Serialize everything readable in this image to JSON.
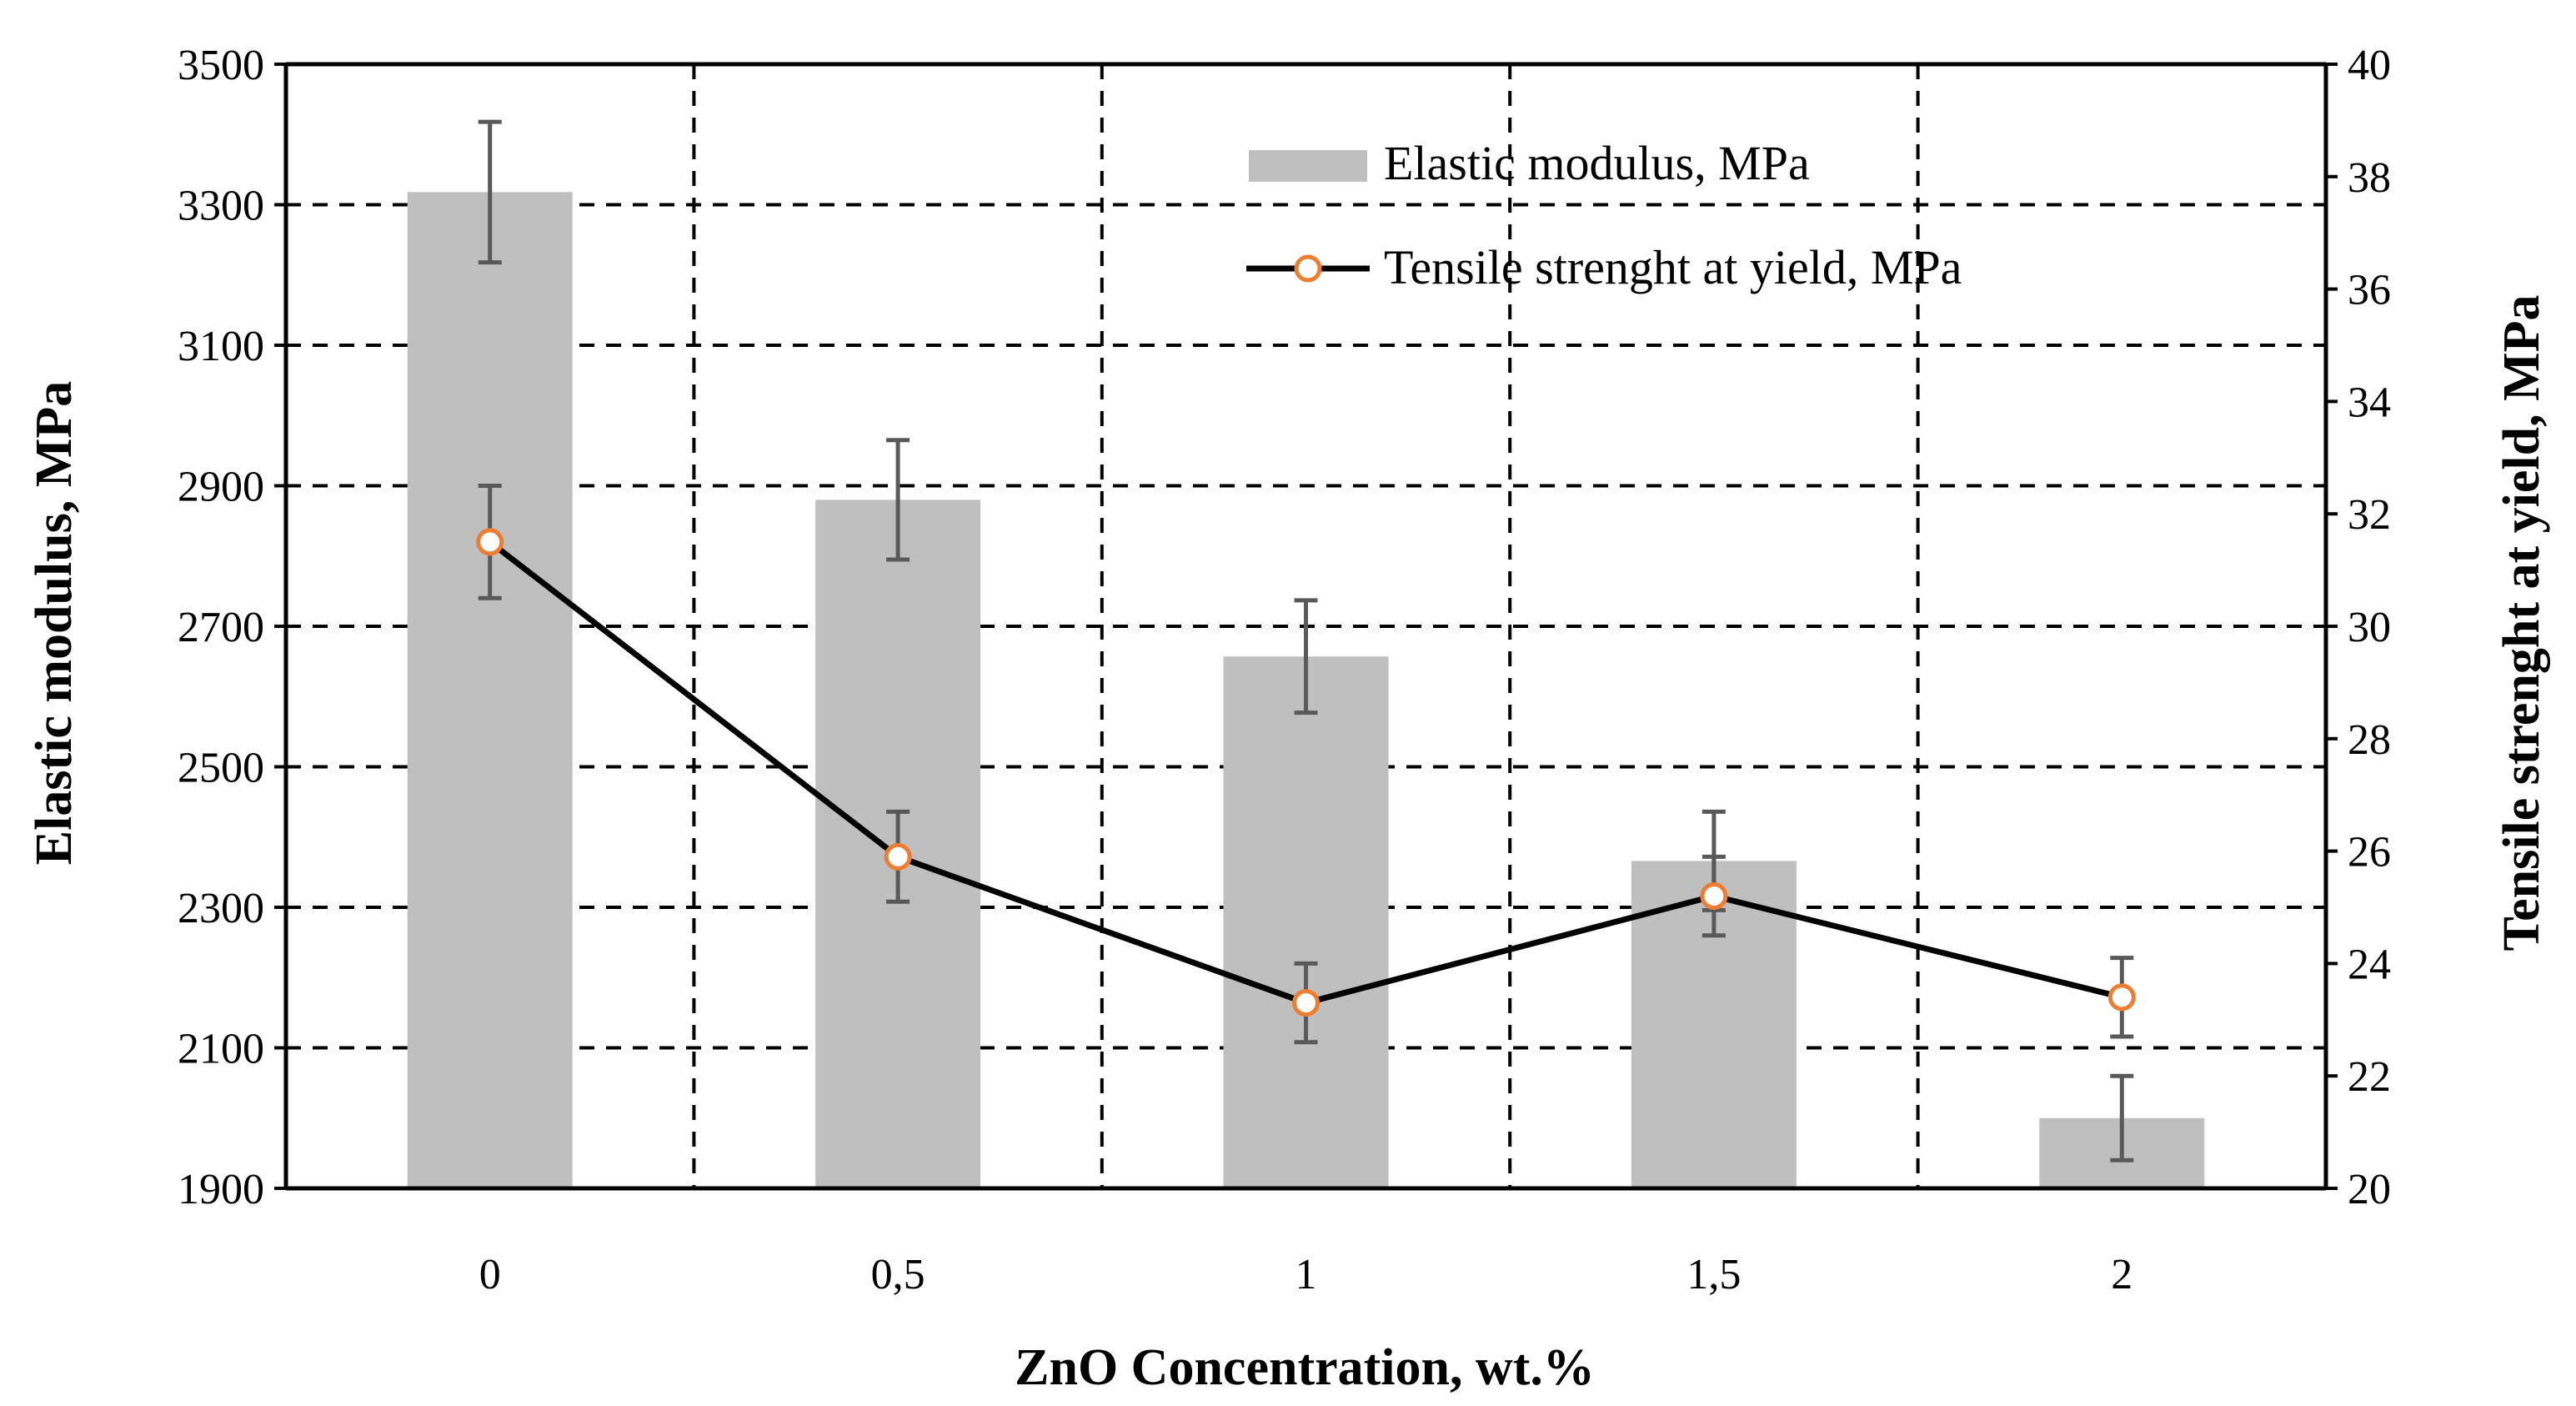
{
  "chart_data": {
    "type": "bar+line",
    "title": "",
    "xlabel": "ZnO Concentration, wt.%",
    "ylabel": "Elastic modulus, MPa",
    "y2label": "Tensile strenght at yield, MPa",
    "categories": [
      "0",
      "0,5",
      "1",
      "1,5",
      "2"
    ],
    "ylim": [
      1900,
      3500
    ],
    "yticks": [
      "1900",
      "2100",
      "2300",
      "2500",
      "2700",
      "2900",
      "3100",
      "3300",
      "3500"
    ],
    "y2lim": [
      20,
      40
    ],
    "y2ticks": [
      "20",
      "22",
      "24",
      "26",
      "28",
      "30",
      "32",
      "34",
      "36",
      "38",
      "40"
    ],
    "grid": "dashed",
    "legend_position": "top-right",
    "series": [
      {
        "name": "Elastic modulus, MPa",
        "type": "bar",
        "axis": "left",
        "color": "#bfbfbf",
        "values": [
          3318,
          2880,
          2657,
          2366,
          2000
        ],
        "errors": [
          100,
          85,
          80,
          70,
          60
        ]
      },
      {
        "name": "Tensile strenght at yield, MPa",
        "type": "line",
        "axis": "right",
        "color": "#000000",
        "marker_color": "#ed7d31",
        "values": [
          31.5,
          25.9,
          23.3,
          25.2,
          23.4
        ],
        "errors": [
          1.0,
          0.8,
          0.7,
          0.7,
          0.7
        ]
      }
    ]
  }
}
